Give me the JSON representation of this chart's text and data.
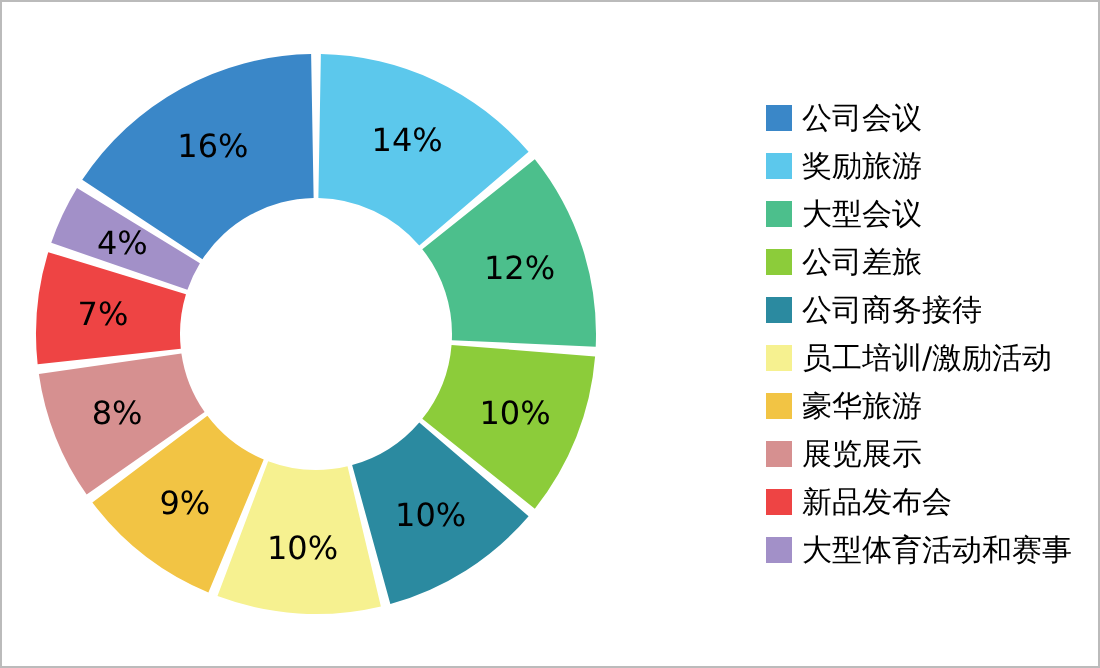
{
  "chart_data": {
    "type": "donut",
    "categories": [
      "公司会议",
      "奖励旅游",
      "大型会议",
      "公司差旅",
      "公司商务接待",
      "员工培训/激励活动",
      "豪华旅游",
      "展览展示",
      "新品发布会",
      "大型体育活动和赛事"
    ],
    "values": [
      16,
      14,
      12,
      10,
      10,
      10,
      9,
      8,
      7,
      4
    ],
    "value_labels": [
      "16%",
      "14%",
      "12%",
      "10%",
      "10%",
      "10%",
      "9%",
      "8%",
      "7%",
      "4%"
    ],
    "colors": [
      "#3a87c8",
      "#5cc8ec",
      "#4cbf8c",
      "#8ccc3a",
      "#2b8aa0",
      "#f6f190",
      "#f2c444",
      "#d69090",
      "#ee4444",
      "#a290c8"
    ],
    "legend": "right"
  }
}
